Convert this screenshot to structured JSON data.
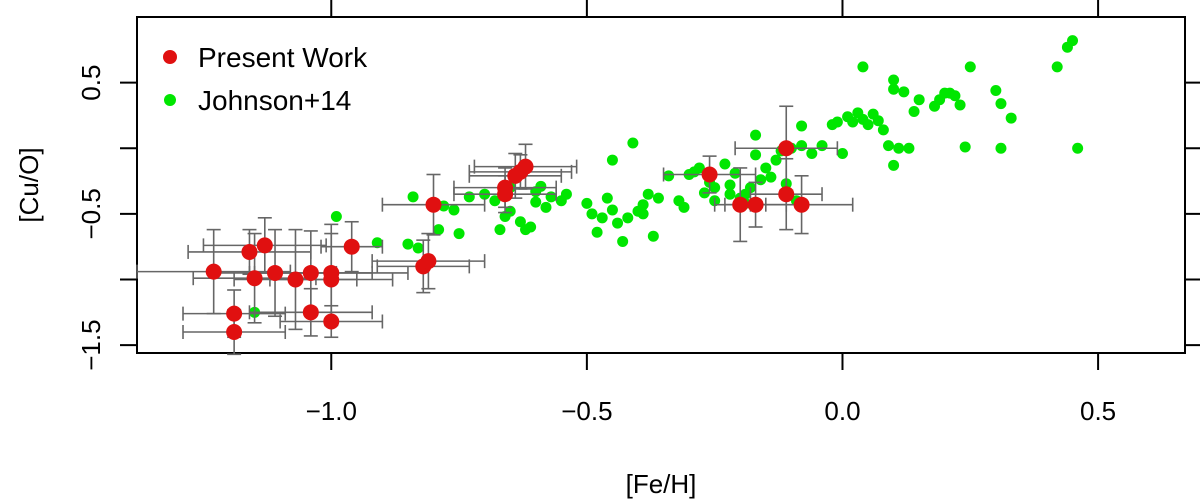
{
  "chart_data": {
    "type": "scatter",
    "xlabel": "[Fe/H]",
    "ylabel": "[Cu/O]",
    "xlim": [
      -1.38,
      0.67
    ],
    "ylim": [
      -1.56,
      1.0
    ],
    "x_ticks": [
      -1.0,
      -0.5,
      0.0,
      0.5
    ],
    "x_tick_labels": [
      "−1.0",
      "−0.5",
      "0.0",
      "0.5"
    ],
    "y_ticks": [
      -1.5,
      -0.5,
      0.5
    ],
    "y_tick_labels": [
      "−1.5",
      "−0.5",
      "0.5"
    ],
    "y_minor_ticks": [
      -1.0,
      0.0
    ],
    "grid": false,
    "legend_position": "top-left",
    "series": [
      {
        "name": "Johnson+14",
        "color": "#00e600",
        "marker": "circle",
        "points": [
          [
            -0.99,
            -0.52
          ],
          [
            -0.91,
            -0.72
          ],
          [
            -0.85,
            -0.73
          ],
          [
            -0.84,
            -0.37
          ],
          [
            -0.83,
            -0.76
          ],
          [
            -0.79,
            -0.62
          ],
          [
            -0.78,
            -0.44
          ],
          [
            -0.76,
            -0.47
          ],
          [
            -0.75,
            -0.65
          ],
          [
            -0.73,
            -0.37
          ],
          [
            -0.7,
            -0.35
          ],
          [
            -0.68,
            -0.4
          ],
          [
            -0.67,
            -0.62
          ],
          [
            -0.66,
            -0.52
          ],
          [
            -0.65,
            -0.48
          ],
          [
            -0.65,
            -0.3
          ],
          [
            -0.63,
            -0.56
          ],
          [
            -0.62,
            -0.62
          ],
          [
            -0.61,
            -0.6
          ],
          [
            -0.6,
            -0.33
          ],
          [
            -0.6,
            -0.41
          ],
          [
            -0.59,
            -0.29
          ],
          [
            -0.58,
            -0.45
          ],
          [
            -0.57,
            -0.37
          ],
          [
            -0.55,
            -0.4
          ],
          [
            -0.54,
            -0.35
          ],
          [
            -0.5,
            -0.42
          ],
          [
            -0.49,
            -0.5
          ],
          [
            -0.48,
            -0.64
          ],
          [
            -0.47,
            -0.53
          ],
          [
            -0.46,
            -0.38
          ],
          [
            -0.45,
            -0.47
          ],
          [
            -0.45,
            -0.09
          ],
          [
            -0.44,
            -0.57
          ],
          [
            -0.43,
            -0.71
          ],
          [
            -0.42,
            -0.53
          ],
          [
            -0.41,
            0.04
          ],
          [
            -0.4,
            -0.48
          ],
          [
            -0.39,
            -0.5
          ],
          [
            -0.39,
            -0.43
          ],
          [
            -0.38,
            -0.35
          ],
          [
            -0.37,
            -0.67
          ],
          [
            -0.36,
            -0.38
          ],
          [
            -0.34,
            -0.21
          ],
          [
            -0.32,
            -0.4
          ],
          [
            -0.31,
            -0.45
          ],
          [
            -0.3,
            -0.2
          ],
          [
            -0.29,
            -0.18
          ],
          [
            -0.28,
            -0.15
          ],
          [
            -0.27,
            -0.34
          ],
          [
            -0.26,
            -0.26
          ],
          [
            -0.25,
            -0.4
          ],
          [
            -0.25,
            -0.3
          ],
          [
            -0.23,
            -0.12
          ],
          [
            -0.22,
            -0.28
          ],
          [
            -0.22,
            -0.35
          ],
          [
            -0.21,
            -0.19
          ],
          [
            -0.2,
            -0.38
          ],
          [
            -0.19,
            -0.42
          ],
          [
            -0.19,
            -0.35
          ],
          [
            -0.18,
            -0.3
          ],
          [
            -0.17,
            -0.05
          ],
          [
            -0.17,
            0.1
          ],
          [
            -0.16,
            -0.24
          ],
          [
            -0.15,
            -0.15
          ],
          [
            -0.14,
            -0.22
          ],
          [
            -0.13,
            -0.09
          ],
          [
            -0.12,
            -0.02
          ],
          [
            -0.11,
            -0.27
          ],
          [
            -0.1,
            0.0
          ],
          [
            -0.09,
            -0.4
          ],
          [
            -0.08,
            0.02
          ],
          [
            -0.08,
            0.17
          ],
          [
            -0.06,
            -0.04
          ],
          [
            -0.04,
            0.02
          ],
          [
            -0.02,
            0.18
          ],
          [
            -0.01,
            0.2
          ],
          [
            0.0,
            -0.04
          ],
          [
            0.01,
            0.24
          ],
          [
            0.02,
            0.2
          ],
          [
            0.03,
            0.27
          ],
          [
            0.04,
            0.22
          ],
          [
            0.04,
            0.62
          ],
          [
            0.05,
            0.18
          ],
          [
            0.06,
            0.26
          ],
          [
            0.07,
            0.21
          ],
          [
            0.08,
            0.14
          ],
          [
            0.09,
            0.02
          ],
          [
            0.1,
            -0.13
          ],
          [
            0.1,
            0.52
          ],
          [
            0.1,
            0.45
          ],
          [
            0.11,
            0.0
          ],
          [
            0.12,
            0.43
          ],
          [
            0.13,
            0.0
          ],
          [
            0.14,
            0.28
          ],
          [
            0.15,
            0.37
          ],
          [
            0.18,
            0.32
          ],
          [
            0.19,
            0.37
          ],
          [
            0.2,
            0.42
          ],
          [
            0.21,
            0.42
          ],
          [
            0.22,
            0.4
          ],
          [
            0.23,
            0.33
          ],
          [
            0.24,
            0.01
          ],
          [
            0.25,
            0.62
          ],
          [
            0.3,
            0.44
          ],
          [
            0.31,
            0.34
          ],
          [
            0.31,
            0.0
          ],
          [
            0.33,
            0.23
          ],
          [
            0.42,
            0.62
          ],
          [
            0.44,
            0.77
          ],
          [
            0.45,
            0.82
          ],
          [
            0.46,
            0.0
          ],
          [
            -1.15,
            -1.25
          ]
        ]
      },
      {
        "name": "Present Work",
        "color": "#e01010",
        "marker": "circle",
        "errorbar_color": "#666666",
        "points": [
          {
            "x": -1.23,
            "y": -0.94,
            "xerr": 0.15,
            "yerr": 0.32
          },
          {
            "x": -1.19,
            "y": -1.26,
            "xerr": 0.1,
            "yerr": 0.18
          },
          {
            "x": -1.19,
            "y": -1.4,
            "xerr": 0.1,
            "yerr": 0.17
          },
          {
            "x": -1.16,
            "y": -0.79,
            "xerr": 0.12,
            "yerr": 0.17
          },
          {
            "x": -1.15,
            "y": -0.99,
            "xerr": 0.12,
            "yerr": 0.34
          },
          {
            "x": -1.13,
            "y": -0.74,
            "xerr": 0.12,
            "yerr": 0.21
          },
          {
            "x": -1.11,
            "y": -0.95,
            "xerr": 0.12,
            "yerr": 0.33
          },
          {
            "x": -1.07,
            "y": -1.0,
            "xerr": 0.12,
            "yerr": 0.38
          },
          {
            "x": -1.04,
            "y": -0.95,
            "xerr": 0.12,
            "yerr": 0.32
          },
          {
            "x": -1.04,
            "y": -1.25,
            "xerr": 0.12,
            "yerr": 0.18
          },
          {
            "x": -1.0,
            "y": -0.95,
            "xerr": 0.15,
            "yerr": 0.37
          },
          {
            "x": -1.0,
            "y": -1.0,
            "xerr": 0.12,
            "yerr": 0.35
          },
          {
            "x": -1.0,
            "y": -1.32,
            "xerr": 0.1,
            "yerr": 0.12
          },
          {
            "x": -0.96,
            "y": -0.75,
            "xerr": 0.06,
            "yerr": 0.19
          },
          {
            "x": -0.82,
            "y": -0.9,
            "xerr": 0.09,
            "yerr": 0.2
          },
          {
            "x": -0.81,
            "y": -0.86,
            "xerr": 0.11,
            "yerr": 0.21
          },
          {
            "x": -0.8,
            "y": -0.43,
            "xerr": 0.1,
            "yerr": 0.23
          },
          {
            "x": -0.66,
            "y": -0.3,
            "xerr": 0.1,
            "yerr": 0.15
          },
          {
            "x": -0.66,
            "y": -0.35,
            "xerr": 0.1,
            "yerr": 0.14
          },
          {
            "x": -0.64,
            "y": -0.21,
            "xerr": 0.09,
            "yerr": 0.17
          },
          {
            "x": -0.63,
            "y": -0.18,
            "xerr": 0.1,
            "yerr": 0.13
          },
          {
            "x": -0.62,
            "y": -0.14,
            "xerr": 0.1,
            "yerr": 0.17
          },
          {
            "x": -0.26,
            "y": -0.2,
            "xerr": 0.09,
            "yerr": 0.14
          },
          {
            "x": -0.2,
            "y": -0.43,
            "xerr": 0.05,
            "yerr": 0.28
          },
          {
            "x": -0.17,
            "y": -0.43,
            "xerr": 0.06,
            "yerr": 0.17
          },
          {
            "x": -0.11,
            "y": 0.0,
            "xerr": 0.1,
            "yerr": 0.32
          },
          {
            "x": -0.11,
            "y": -0.35,
            "xerr": 0.07,
            "yerr": 0.27
          },
          {
            "x": -0.08,
            "y": -0.43,
            "xerr": 0.1,
            "yerr": 0.22
          }
        ]
      }
    ]
  }
}
